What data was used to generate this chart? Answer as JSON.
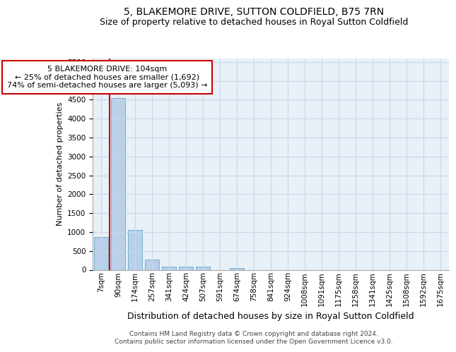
{
  "title": "5, BLAKEMORE DRIVE, SUTTON COLDFIELD, B75 7RN",
  "subtitle": "Size of property relative to detached houses in Royal Sutton Coldfield",
  "xlabel": "Distribution of detached houses by size in Royal Sutton Coldfield",
  "ylabel": "Number of detached properties",
  "footnote1": "Contains HM Land Registry data © Crown copyright and database right 2024.",
  "footnote2": "Contains public sector information licensed under the Open Government Licence v3.0.",
  "bin_labels": [
    "7sqm",
    "90sqm",
    "174sqm",
    "257sqm",
    "341sqm",
    "424sqm",
    "507sqm",
    "591sqm",
    "674sqm",
    "758sqm",
    "841sqm",
    "924sqm",
    "1008sqm",
    "1091sqm",
    "1175sqm",
    "1258sqm",
    "1341sqm",
    "1425sqm",
    "1508sqm",
    "1592sqm",
    "1675sqm"
  ],
  "bar_values": [
    870,
    4550,
    1060,
    275,
    90,
    75,
    75,
    0,
    55,
    0,
    0,
    0,
    0,
    0,
    0,
    0,
    0,
    0,
    0,
    0,
    0
  ],
  "bar_color": "#b8d0e8",
  "bar_edge_color": "#7aaed0",
  "red_line_x": 0.5,
  "annotation_text": "5 BLAKEMORE DRIVE: 104sqm\n← 25% of detached houses are smaller (1,692)\n74% of semi-detached houses are larger (5,093) →",
  "annotation_box_color": "#cc0000",
  "ylim": [
    0,
    5600
  ],
  "yticks": [
    0,
    500,
    1000,
    1500,
    2000,
    2500,
    3000,
    3500,
    4000,
    4500,
    5000,
    5500
  ],
  "grid_color": "#c8d8e8",
  "bg_color": "#e8f0f8",
  "title_fontsize": 10,
  "subtitle_fontsize": 9,
  "ylabel_fontsize": 8,
  "xlabel_fontsize": 9,
  "tick_fontsize": 7.5,
  "footnote_fontsize": 6.5
}
